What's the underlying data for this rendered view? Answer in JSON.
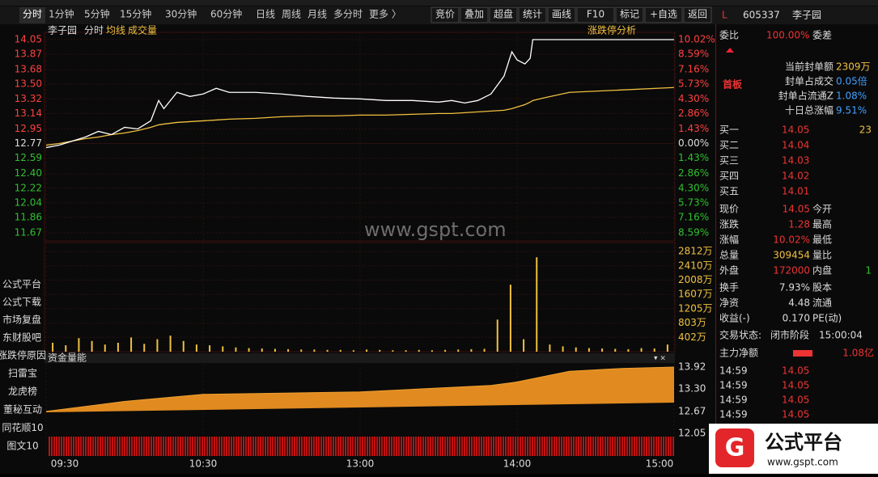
{
  "toolbar": {
    "tabs": [
      "分时",
      "1分钟",
      "5分钟",
      "15分钟",
      "30分钟",
      "60分钟",
      "日线",
      "周线",
      "月线",
      "多分时",
      "更多 〉"
    ],
    "buttons": [
      "竞价",
      "叠加",
      "超盘",
      "统计",
      "画线",
      "F10",
      "标记",
      "+自选",
      "返回"
    ]
  },
  "chart_header": {
    "name": "李子园",
    "mode": "分时",
    "avg_label": "均线",
    "vol_label": "成交量",
    "analysis": "涨跌停分析"
  },
  "price_chart": {
    "ylim": [
      11.67,
      14.05
    ],
    "yticks": [
      14.05,
      13.87,
      13.68,
      13.5,
      13.32,
      13.14,
      12.95,
      12.77,
      12.59,
      12.4,
      12.22,
      12.04,
      11.86,
      11.67
    ],
    "ytick_labels": [
      "14.05",
      "13.87",
      "13.68",
      "13.50",
      "13.32",
      "13.14",
      "12.95",
      "12.77",
      "12.59",
      "12.40",
      "12.22",
      "12.04",
      "11.86",
      "11.67"
    ],
    "pct_labels": [
      "10.02%",
      "8.59%",
      "7.16%",
      "5.73%",
      "4.30%",
      "2.86%",
      "1.43%",
      "0.00%",
      "1.43%",
      "2.86%",
      "4.30%",
      "5.73%",
      "7.16%",
      "8.59%"
    ],
    "xlim": [
      0,
      240
    ],
    "xticks": [
      {
        "value": 0,
        "label": "09:30"
      },
      {
        "value": 60,
        "label": "10:30"
      },
      {
        "value": 120,
        "label": "13:00"
      },
      {
        "value": 180,
        "label": "14:00"
      },
      {
        "value": 240,
        "label": "15:00"
      }
    ],
    "minutes": [
      0,
      5,
      10,
      15,
      20,
      25,
      30,
      35,
      40,
      43,
      45,
      50,
      55,
      60,
      65,
      70,
      80,
      90,
      100,
      110,
      120,
      130,
      140,
      150,
      155,
      160,
      165,
      170,
      175,
      178,
      180,
      183,
      185,
      186,
      190,
      200,
      240
    ],
    "price": [
      12.72,
      12.75,
      12.8,
      12.85,
      12.92,
      12.88,
      12.97,
      12.95,
      13.05,
      13.3,
      13.2,
      13.4,
      13.35,
      13.38,
      13.45,
      13.4,
      13.4,
      13.38,
      13.35,
      13.33,
      13.32,
      13.3,
      13.3,
      13.28,
      13.3,
      13.27,
      13.3,
      13.38,
      13.6,
      13.9,
      13.8,
      13.75,
      13.82,
      14.05,
      14.05,
      14.05,
      14.05
    ],
    "avg": [
      12.75,
      12.77,
      12.8,
      12.83,
      12.85,
      12.88,
      12.9,
      12.93,
      12.97,
      13.0,
      13.01,
      13.03,
      13.04,
      13.05,
      13.06,
      13.07,
      13.08,
      13.1,
      13.11,
      13.11,
      13.12,
      13.12,
      13.13,
      13.14,
      13.14,
      13.15,
      13.16,
      13.17,
      13.18,
      13.2,
      13.22,
      13.25,
      13.28,
      13.3,
      13.33,
      13.4,
      13.46
    ]
  },
  "watermark": "www.gspt.com",
  "volume_chart": {
    "ylim": [
      0,
      2950
    ],
    "yticks": [
      {
        "value": 2812,
        "label": "2812万"
      },
      {
        "value": 2410,
        "label": "2410万"
      },
      {
        "value": 2008,
        "label": "2008万"
      },
      {
        "value": 1607,
        "label": "1607万"
      },
      {
        "value": 1205,
        "label": "1205万"
      },
      {
        "value": 803,
        "label": "803万"
      },
      {
        "value": 402,
        "label": "402万"
      }
    ],
    "values": [
      250,
      180,
      380,
      300,
      200,
      250,
      400,
      220,
      350,
      450,
      300,
      200,
      180,
      150,
      120,
      100,
      90,
      80,
      70,
      60,
      60,
      50,
      50,
      40,
      60,
      50,
      40,
      40,
      50,
      40,
      50,
      60,
      70,
      80,
      900,
      1880,
      350,
      2650,
      200,
      150,
      120,
      100,
      90,
      80,
      70,
      100,
      90,
      200
    ]
  },
  "fund_chart": {
    "title": "资金量能",
    "ylim": [
      12.05,
      13.92
    ],
    "yticks": [
      13.92,
      13.3,
      12.67,
      12.05
    ],
    "ytick_labels": [
      "13.92",
      "13.30",
      "12.67",
      "12.05"
    ],
    "minutes": [
      0,
      30,
      60,
      120,
      170,
      180,
      200,
      220,
      240
    ],
    "values": [
      12.67,
      12.95,
      13.15,
      13.22,
      13.4,
      13.5,
      13.8,
      13.88,
      13.92
    ]
  },
  "side_menu": [
    "公式平台",
    "公式下载",
    "市场复盘",
    "东财股吧",
    "涨跌停原因",
    "扫雷宝",
    "龙虎榜",
    "董秘互动",
    "同花顺10",
    "图文10"
  ],
  "quote": {
    "prefix": "L",
    "code": "605337",
    "name": "李子园",
    "weibi_label": "委比",
    "weibi": "100.00%",
    "weicha_label": "委差",
    "board": "首板",
    "seal": [
      {
        "label": "当前封单额",
        "value": "2309万"
      },
      {
        "label": "封单占成交",
        "value": "0.05倍"
      },
      {
        "label": "封单占流通Z",
        "value": "1.08%"
      },
      {
        "label": "十日总涨幅",
        "value": "9.51%"
      }
    ],
    "bids": [
      {
        "label": "买一",
        "price": "14.05",
        "volume": "23"
      },
      {
        "label": "买二",
        "price": "14.04"
      },
      {
        "label": "买三",
        "price": "14.03"
      },
      {
        "label": "买四",
        "price": "14.02"
      },
      {
        "label": "买五",
        "price": "14.01"
      }
    ],
    "stats": [
      {
        "label": "现价",
        "value": "14.05",
        "label2": "今开"
      },
      {
        "label": "涨跌",
        "value": "1.28",
        "label2": "最高"
      },
      {
        "label": "涨幅",
        "value": "10.02%",
        "label2": "最低"
      },
      {
        "label": "总量",
        "value": "309454",
        "label2": "量比"
      },
      {
        "label": "外盘",
        "value": "172000",
        "label2": "内盘",
        "value2": "1"
      },
      {
        "label": "换手",
        "value": "7.93%",
        "label2": "股本"
      },
      {
        "label": "净资",
        "value": "4.48",
        "label2": "流通"
      },
      {
        "label": "收益(-)",
        "value": "0.170",
        "label2": "PE(动)"
      }
    ],
    "status_label": "交易状态:",
    "status": "闭市阶段",
    "status_time": "15:00:04",
    "net_label": "主力净额",
    "net": "1.08亿",
    "trades": [
      {
        "time": "14:59",
        "price": "14.05"
      },
      {
        "time": "14:59",
        "price": "14.05"
      },
      {
        "time": "14:59",
        "price": "14.05"
      },
      {
        "time": "14:59",
        "price": "14.05"
      }
    ]
  },
  "logo": {
    "name": "公式平台",
    "url": "www.gspt.com"
  }
}
